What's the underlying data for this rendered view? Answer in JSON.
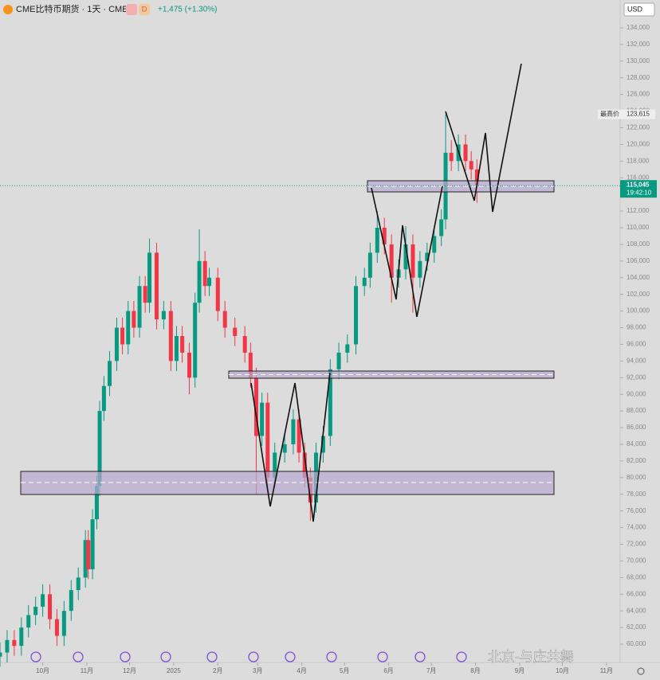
{
  "header": {
    "title": "CME比特币期货 · 1天 · CME",
    "badge": "D",
    "change": "+1,475 (+1.30%)",
    "currency": "USD"
  },
  "watermark": "北京-与庄共舞",
  "chart_data": {
    "type": "candlestick",
    "x": [
      0,
      5,
      10,
      15,
      20,
      25,
      30,
      35,
      40,
      45,
      50,
      55,
      60,
      62,
      65,
      68,
      70,
      73,
      77,
      82,
      86,
      90,
      94,
      98,
      102,
      105,
      110,
      115,
      120,
      124,
      128,
      133,
      137,
      140,
      144,
      147,
      153,
      158,
      165,
      172,
      176,
      180,
      184,
      188,
      193,
      200,
      206,
      210,
      214,
      218,
      222,
      227,
      232,
      238,
      244,
      250,
      256,
      260,
      265,
      270,
      275,
      280,
      285,
      290,
      295,
      300,
      305,
      310,
      313,
      317,
      322,
      327,
      331,
      335
    ],
    "open": [
      58500,
      59000,
      60500,
      59800,
      62000,
      63500,
      64500,
      66000,
      63000,
      61000,
      64000,
      66500,
      68000,
      72500,
      69000,
      75000,
      79000,
      88000,
      91000,
      94000,
      98000,
      96000,
      100000,
      98000,
      103000,
      101000,
      107000,
      99000,
      100000,
      94000,
      97000,
      95000,
      92000,
      101000,
      106000,
      103000,
      104000,
      100000,
      98000,
      97000,
      95000,
      92000,
      85000,
      89000,
      80000,
      83000,
      84000,
      87000,
      83000,
      80000,
      77000,
      83000,
      85000,
      93000,
      95000,
      96000,
      103000,
      104000,
      107000,
      110000,
      108000,
      104000,
      105000,
      108000,
      104000,
      106000,
      107000,
      109000,
      111000,
      119000,
      118000,
      120000,
      118000,
      117000
    ],
    "high": [
      60200,
      61700,
      61700,
      63200,
      64700,
      65700,
      67200,
      67200,
      64200,
      65200,
      67700,
      69200,
      73700,
      73700,
      76200,
      80200,
      89200,
      92200,
      95200,
      99200,
      99200,
      101200,
      101200,
      104200,
      104200,
      108700,
      108200,
      101200,
      101200,
      98200,
      98200,
      96200,
      102200,
      109800,
      107200,
      105200,
      105200,
      101200,
      99200,
      98200,
      96200,
      93200,
      90200,
      90200,
      84200,
      85200,
      88200,
      88200,
      84200,
      81200,
      84200,
      86200,
      94200,
      96200,
      97200,
      104200,
      105200,
      108200,
      112000,
      111200,
      109200,
      106200,
      110200,
      109200,
      107200,
      108200,
      110200,
      112200,
      123615,
      120500,
      121200,
      121200,
      119200,
      118200
    ],
    "low": [
      57300,
      57800,
      58600,
      58600,
      60800,
      62300,
      63300,
      61800,
      59800,
      59800,
      62800,
      65300,
      66800,
      67800,
      67800,
      73800,
      77800,
      86800,
      89800,
      92800,
      94800,
      94800,
      96800,
      96800,
      99800,
      99800,
      97800,
      97800,
      92800,
      92800,
      93800,
      90000,
      90800,
      99800,
      101800,
      101800,
      98800,
      96800,
      95800,
      93800,
      90800,
      78000,
      83800,
      78800,
      78800,
      81800,
      82800,
      81800,
      78800,
      74800,
      75800,
      81800,
      83800,
      91800,
      93800,
      94800,
      101800,
      102800,
      105800,
      106800,
      101000,
      102800,
      103800,
      99800,
      102800,
      104800,
      105800,
      107800,
      109800,
      116800,
      116800,
      116800,
      115800,
      113000
    ],
    "close": [
      59000,
      60500,
      59800,
      62000,
      63500,
      64500,
      66000,
      63000,
      61000,
      64000,
      66500,
      68000,
      72500,
      69000,
      75000,
      79000,
      88000,
      91000,
      94000,
      98000,
      96000,
      100000,
      98000,
      103000,
      101000,
      107000,
      99000,
      100000,
      94000,
      97000,
      95000,
      92000,
      101000,
      106000,
      103000,
      104000,
      100000,
      98000,
      97000,
      95000,
      92000,
      85000,
      89000,
      80000,
      83000,
      84000,
      87000,
      83000,
      80000,
      77000,
      83000,
      85000,
      93000,
      95000,
      96000,
      103000,
      104000,
      107000,
      110000,
      108000,
      104000,
      105000,
      108000,
      104000,
      106000,
      107000,
      109000,
      111000,
      119000,
      118000,
      120000,
      118000,
      117000,
      115045
    ],
    "up_color": "#089981",
    "down_color": "#f23645",
    "xlim": [
      0,
      435.6
    ],
    "xticks": [
      {
        "value": 30,
        "label": "10月"
      },
      {
        "value": 61,
        "label": "11月"
      },
      {
        "value": 91,
        "label": "12月"
      },
      {
        "value": 122,
        "label": "2025"
      },
      {
        "value": 153,
        "label": "2月"
      },
      {
        "value": 181,
        "label": "3月"
      },
      {
        "value": 212,
        "label": "4月"
      },
      {
        "value": 242,
        "label": "5月"
      },
      {
        "value": 273,
        "label": "6月"
      },
      {
        "value": 303,
        "label": "7月"
      },
      {
        "value": 334,
        "label": "8月"
      },
      {
        "value": 365,
        "label": "9月"
      },
      {
        "value": 395,
        "label": "10月"
      },
      {
        "value": 426,
        "label": "11月"
      }
    ],
    "ylim": [
      58760,
      137340
    ],
    "yticks": [
      {
        "value": 60000,
        "label": "60,000"
      },
      {
        "value": 62000,
        "label": "62,000"
      },
      {
        "value": 64000,
        "label": "64,000"
      },
      {
        "value": 66000,
        "label": "66,000"
      },
      {
        "value": 68000,
        "label": "68,000"
      },
      {
        "value": 70000,
        "label": "70,000"
      },
      {
        "value": 72000,
        "label": "72,000"
      },
      {
        "value": 74000,
        "label": "74,000"
      },
      {
        "value": 76000,
        "label": "76,000"
      },
      {
        "value": 78000,
        "label": "78,000"
      },
      {
        "value": 80000,
        "label": "80,000"
      },
      {
        "value": 82000,
        "label": "82,000"
      },
      {
        "value": 84000,
        "label": "84,000"
      },
      {
        "value": 86000,
        "label": "86,000"
      },
      {
        "value": 88000,
        "label": "88,000"
      },
      {
        "value": 90000,
        "label": "90,000"
      },
      {
        "value": 92000,
        "label": "92,000"
      },
      {
        "value": 94000,
        "label": "94,000"
      },
      {
        "value": 96000,
        "label": "96,000"
      },
      {
        "value": 98000,
        "label": "98,000"
      },
      {
        "value": 100000,
        "label": "100,000"
      },
      {
        "value": 102000,
        "label": "102,000"
      },
      {
        "value": 104000,
        "label": "104,000"
      },
      {
        "value": 106000,
        "label": "106,000"
      },
      {
        "value": 108000,
        "label": "108,000"
      },
      {
        "value": 110000,
        "label": "110,000"
      },
      {
        "value": 112000,
        "label": "112,000"
      },
      {
        "value": 114000,
        "label": "114,000"
      },
      {
        "value": 116000,
        "label": "116,000"
      },
      {
        "value": 118000,
        "label": "118,000"
      },
      {
        "value": 120000,
        "label": "120,000"
      },
      {
        "value": 122000,
        "label": "122,000"
      },
      {
        "value": 124000,
        "label": "124,000"
      },
      {
        "value": 126000,
        "label": "126,000"
      },
      {
        "value": 128000,
        "label": "128,000"
      },
      {
        "value": 130000,
        "label": "130,000"
      },
      {
        "value": 132000,
        "label": "132,000"
      },
      {
        "value": 134000,
        "label": "134,000"
      }
    ],
    "last_price": {
      "value": 115045,
      "label": "115,045"
    },
    "countdown": "19:42:10",
    "high_marker": {
      "name": "最高价",
      "value": 123615,
      "label": "123,615"
    }
  }
}
